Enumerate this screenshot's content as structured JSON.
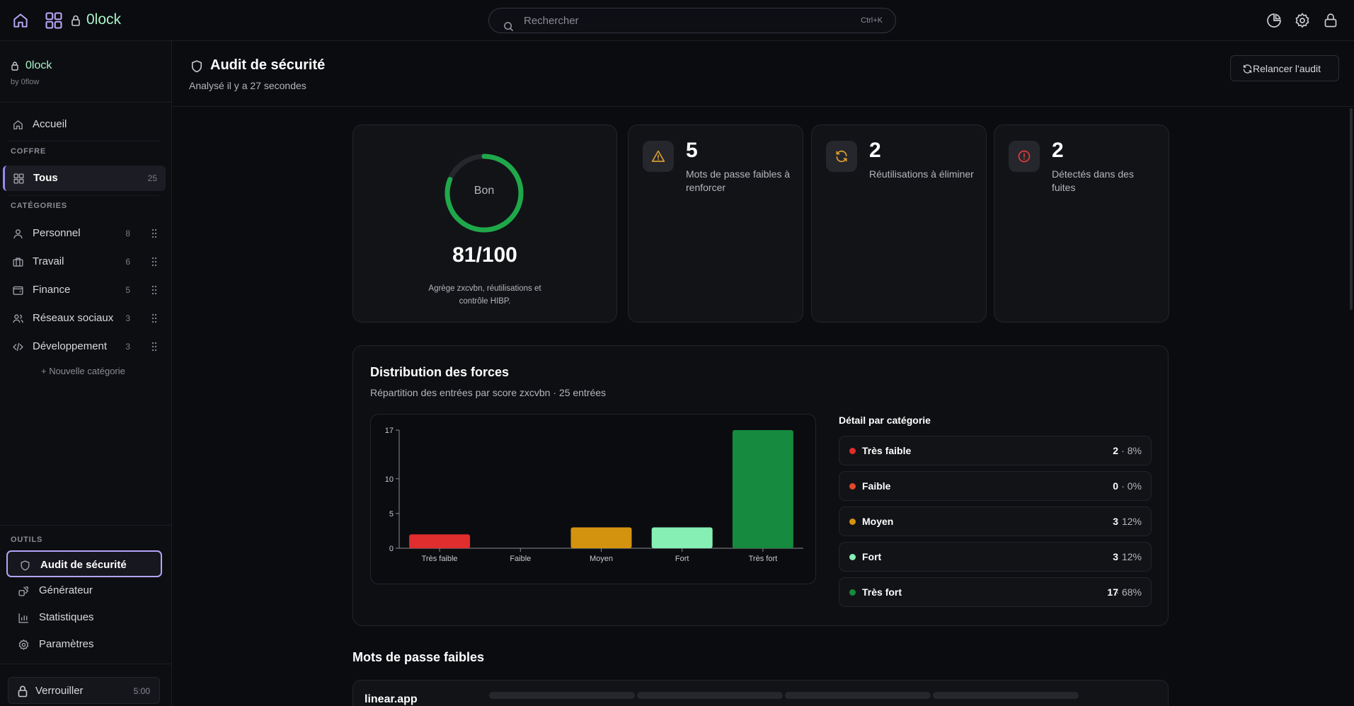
{
  "topbar": {
    "brand": "0lock",
    "search_placeholder": "Rechercher",
    "search_shortcut": "Ctrl+K"
  },
  "sidebar": {
    "brand": "0lock",
    "byline": "by 0flow",
    "home_label": "Accueil",
    "vault_heading": "COFFRE",
    "all_label": "Tous",
    "all_count": "25",
    "categories_heading": "CATÉGORIES",
    "categories": [
      {
        "label": "Personnel",
        "count": "8",
        "icon": "user-icon"
      },
      {
        "label": "Travail",
        "count": "6",
        "icon": "briefcase-icon"
      },
      {
        "label": "Finance",
        "count": "5",
        "icon": "wallet-icon"
      },
      {
        "label": "Réseaux sociaux",
        "count": "3",
        "icon": "users-icon"
      },
      {
        "label": "Développement",
        "count": "3",
        "icon": "code-icon"
      }
    ],
    "new_category": "+ Nouvelle catégorie",
    "tools_heading": "OUTILS",
    "tools": [
      {
        "label": "Audit de sécurité",
        "icon": "shield-icon",
        "active": true
      },
      {
        "label": "Générateur",
        "icon": "generator-icon",
        "active": false
      },
      {
        "label": "Statistiques",
        "icon": "chart-icon",
        "active": false
      },
      {
        "label": "Paramètres",
        "icon": "gear-icon",
        "active": false
      }
    ],
    "lock_label": "Verrouiller",
    "lock_timer": "5:00"
  },
  "header": {
    "title": "Audit de sécurité",
    "subtitle": "Analysé il y a 27 secondes",
    "rerun_label": "Relancer l'audit"
  },
  "score": {
    "label": "Bon",
    "value": "81/100",
    "fraction": 0.81,
    "description": "Agrège zxcvbn, réutilisations et contrôle HIBP."
  },
  "stats": [
    {
      "value": "5",
      "text": "Mots de passe faibles à renforcer",
      "icon": "warning-icon",
      "color": "#e0a32e"
    },
    {
      "value": "2",
      "text": "Réutilisations à éliminer",
      "icon": "refresh-icon",
      "color": "#e0a32e"
    },
    {
      "value": "2",
      "text": "Détectés dans des fuites",
      "icon": "alert-circle-icon",
      "color": "#e23b3b"
    }
  ],
  "distribution": {
    "title": "Distribution des forces",
    "subtitle": "Répartition des entrées par score zxcvbn · 25 entrées",
    "breakdown_title": "Détail par catégorie",
    "breakdown": [
      {
        "name": "Très faible",
        "count": "2",
        "pct": "· 8%",
        "color": "#e02d2d"
      },
      {
        "name": "Faible",
        "count": "0",
        "pct": "· 0%",
        "color": "#e0482d"
      },
      {
        "name": "Moyen",
        "count": "3",
        "pct": "· 12%",
        "color": "#d4930e"
      },
      {
        "name": "Fort",
        "count": "3",
        "pct": "· 12%",
        "color": "#86efb4"
      },
      {
        "name": "Très fort",
        "count": "17",
        "pct": "· 68%",
        "color": "#168a3e"
      }
    ]
  },
  "chart_data": {
    "type": "bar",
    "categories": [
      "Très faible",
      "Faible",
      "Moyen",
      "Fort",
      "Très fort"
    ],
    "values": [
      2,
      0,
      3,
      3,
      17
    ],
    "colors": [
      "#e02d2d",
      "#e0482d",
      "#d4930e",
      "#86efb4",
      "#168a3e"
    ],
    "yticks": [
      0,
      5,
      10,
      17
    ],
    "ylim": [
      0,
      17
    ],
    "title": "",
    "xlabel": "",
    "ylabel": ""
  },
  "weak": {
    "title": "Mots de passe faibles",
    "first_entry": "linear.app"
  }
}
